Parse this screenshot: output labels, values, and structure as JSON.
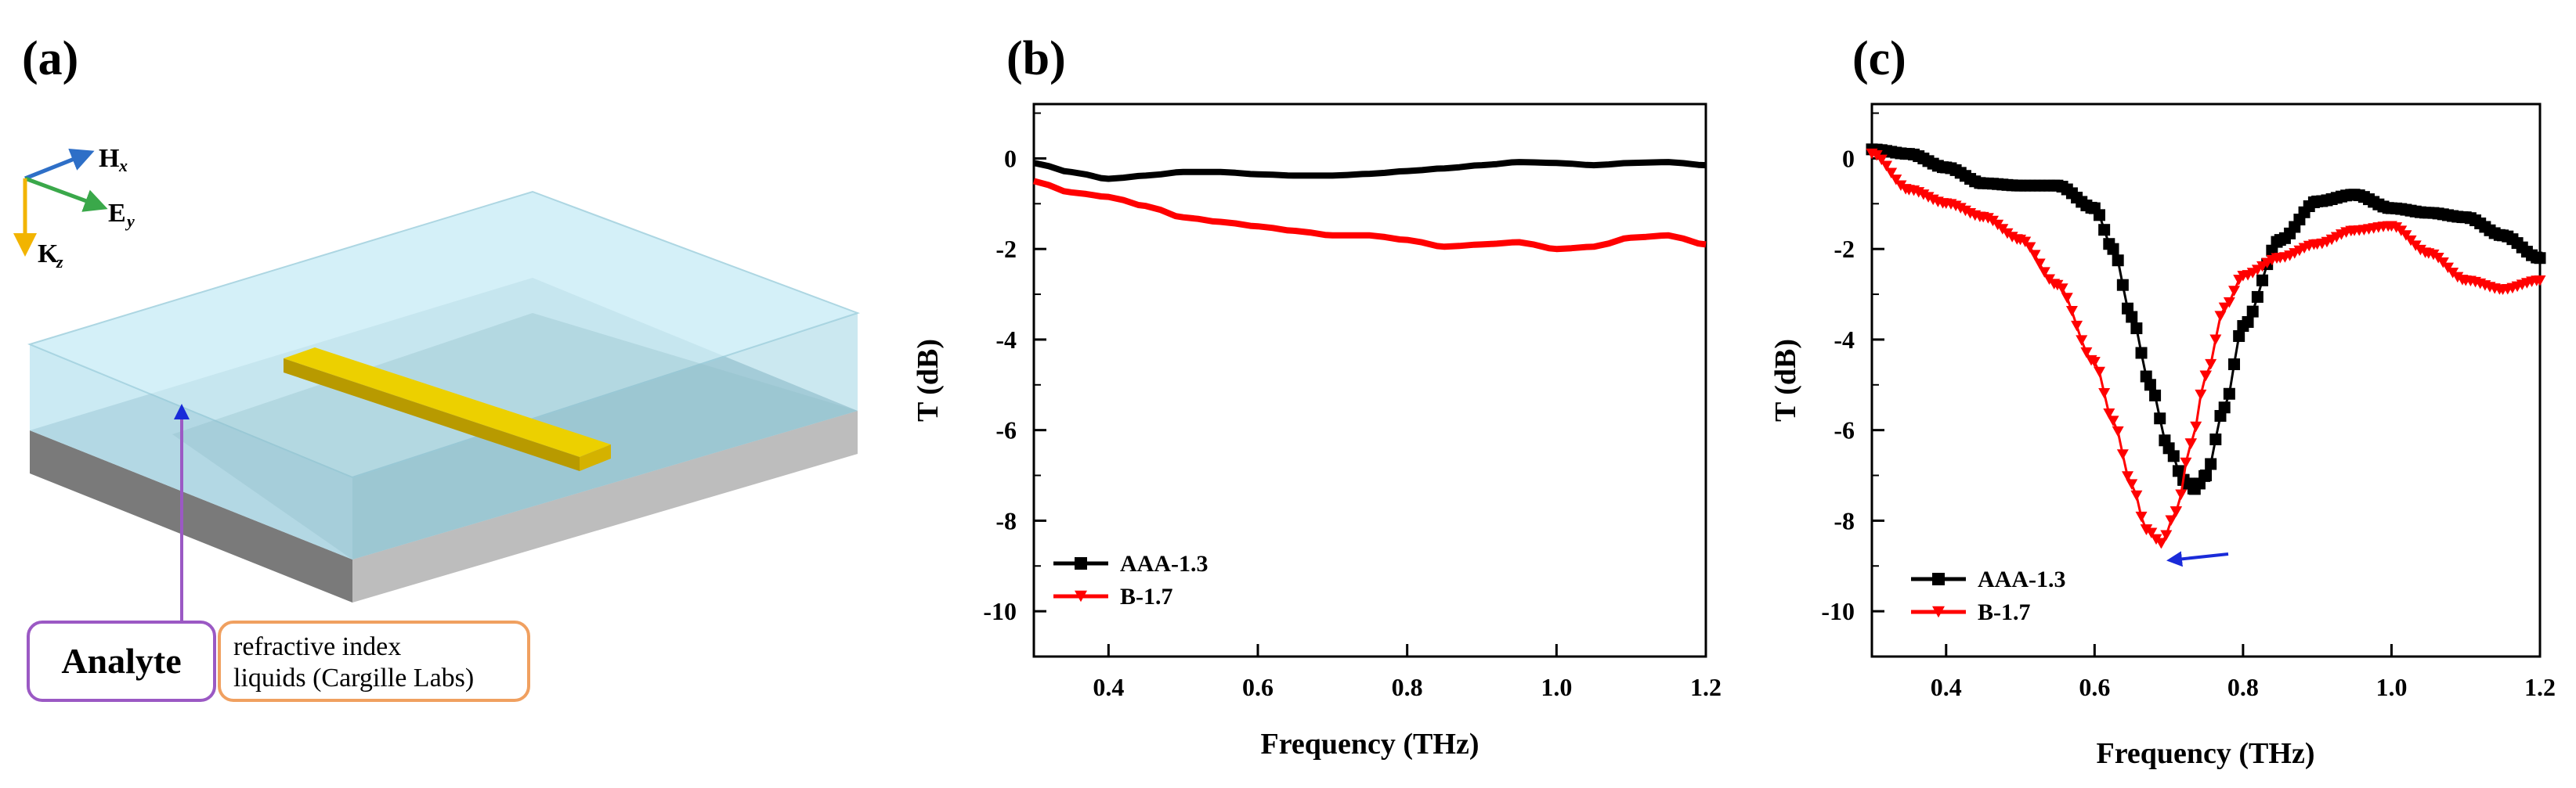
{
  "panels": {
    "a": "(a)",
    "b": "(b)",
    "c": "(c)"
  },
  "diagram": {
    "axis_h": "H",
    "axis_h_sub": "x",
    "axis_e": "E",
    "axis_e_sub": "y",
    "axis_k": "K",
    "axis_k_sub": "z",
    "analyte_label": "Analyte",
    "refractive_line1": "refractive index",
    "refractive_line2": "liquids (Cargille Labs)",
    "colors": {
      "liquid_top": "#cdeef7",
      "liquid_front": "#b9e3ef",
      "gold": "#e2c200",
      "substrate_top": "#cfcfcf",
      "substrate_side": "#7a7a7a",
      "analyte_box": "#9b59c4",
      "refractive_box": "#f0a060",
      "h_arrow": "#2e6fc7",
      "e_arrow": "#3aa84a",
      "k_arrow": "#f2b400"
    }
  },
  "chart_data": [
    {
      "type": "line",
      "panel": "(b)",
      "xlabel": "Frequency (THz)",
      "ylabel": "T (dB)",
      "xlim": [
        0.3,
        1.2
      ],
      "ylim": [
        -11,
        1.2
      ],
      "xticks": [
        0.4,
        0.6,
        0.8,
        1.0,
        1.2
      ],
      "xtick_labels": [
        "0.4",
        "0.6",
        "0.8",
        "1.0",
        "1.2"
      ],
      "yticks": [
        0,
        -2,
        -4,
        -6,
        -8,
        -10
      ],
      "ytick_labels": [
        "0",
        "-2",
        "-4",
        "-6",
        "-8",
        "-10"
      ],
      "legend_position": "bottom-left",
      "series": [
        {
          "name": "AAA-1.3",
          "color": "#000000",
          "marker": "square",
          "x": [
            0.3,
            0.35,
            0.4,
            0.45,
            0.5,
            0.55,
            0.6,
            0.65,
            0.7,
            0.75,
            0.8,
            0.85,
            0.9,
            0.95,
            1.0,
            1.05,
            1.1,
            1.15,
            1.2
          ],
          "y": [
            -0.1,
            -0.3,
            -0.45,
            -0.38,
            -0.3,
            -0.3,
            -0.35,
            -0.38,
            -0.38,
            -0.34,
            -0.28,
            -0.22,
            -0.15,
            -0.08,
            -0.1,
            -0.15,
            -0.1,
            -0.08,
            -0.15
          ]
        },
        {
          "name": "B-1.7",
          "color": "#ff0000",
          "marker": "triangle-down",
          "x": [
            0.3,
            0.35,
            0.4,
            0.45,
            0.5,
            0.55,
            0.6,
            0.65,
            0.7,
            0.75,
            0.8,
            0.85,
            0.9,
            0.95,
            1.0,
            1.05,
            1.1,
            1.15,
            1.2
          ],
          "y": [
            -0.5,
            -0.75,
            -0.85,
            -1.05,
            -1.3,
            -1.4,
            -1.5,
            -1.6,
            -1.7,
            -1.7,
            -1.8,
            -1.95,
            -1.9,
            -1.85,
            -2.0,
            -1.95,
            -1.75,
            -1.7,
            -1.9
          ]
        }
      ]
    },
    {
      "type": "line",
      "panel": "(c)",
      "xlabel": "Frequency (THz)",
      "ylabel": "T (dB)",
      "xlim": [
        0.3,
        1.2
      ],
      "ylim": [
        -11,
        1.2
      ],
      "xticks": [
        0.4,
        0.6,
        0.8,
        1.0,
        1.2
      ],
      "xtick_labels": [
        "0.4",
        "0.6",
        "0.8",
        "1.0",
        "1.2"
      ],
      "yticks": [
        0,
        -2,
        -4,
        -6,
        -8,
        -10
      ],
      "ytick_labels": [
        "0",
        "-2",
        "-4",
        "-6",
        "-8",
        "-10"
      ],
      "legend_position": "bottom-left",
      "annotation": "blue arrow pointing left at B-1.7 minimum",
      "series": [
        {
          "name": "AAA-1.3",
          "color": "#000000",
          "marker": "square",
          "x": [
            0.3,
            0.35,
            0.4,
            0.45,
            0.5,
            0.55,
            0.6,
            0.625,
            0.65,
            0.675,
            0.7,
            0.72,
            0.735,
            0.75,
            0.775,
            0.8,
            0.85,
            0.9,
            0.95,
            1.0,
            1.05,
            1.1,
            1.15,
            1.2
          ],
          "y": [
            0.2,
            0.1,
            -0.2,
            -0.55,
            -0.6,
            -0.6,
            -1.1,
            -2.0,
            -3.5,
            -5.0,
            -6.4,
            -7.1,
            -7.3,
            -7.0,
            -5.5,
            -3.7,
            -1.8,
            -0.95,
            -0.8,
            -1.1,
            -1.2,
            -1.3,
            -1.7,
            -2.2
          ]
        },
        {
          "name": "B-1.7",
          "color": "#ff0000",
          "marker": "triangle-down",
          "x": [
            0.3,
            0.35,
            0.4,
            0.45,
            0.5,
            0.55,
            0.6,
            0.625,
            0.65,
            0.67,
            0.69,
            0.71,
            0.73,
            0.75,
            0.775,
            0.8,
            0.85,
            0.9,
            0.95,
            1.0,
            1.05,
            1.1,
            1.15,
            1.2
          ],
          "y": [
            0.1,
            -0.7,
            -1.0,
            -1.3,
            -1.8,
            -2.8,
            -4.5,
            -5.8,
            -7.2,
            -8.2,
            -8.5,
            -7.8,
            -6.3,
            -4.8,
            -3.3,
            -2.6,
            -2.2,
            -1.9,
            -1.6,
            -1.5,
            -2.1,
            -2.7,
            -2.9,
            -2.7
          ]
        }
      ]
    }
  ]
}
